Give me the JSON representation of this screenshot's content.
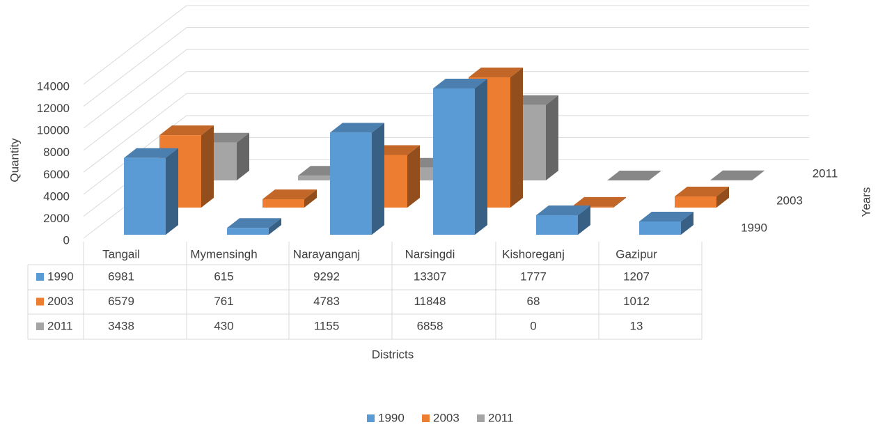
{
  "chart_data": {
    "type": "bar3d",
    "categories": [
      "Tangail",
      "Mymensingh",
      "Narayanganj",
      "Narsingdi",
      "Kishoreganj",
      "Gazipur"
    ],
    "series": [
      {
        "name": "1990",
        "color": "#5b9bd5",
        "values": [
          6981,
          615,
          9292,
          13307,
          1777,
          1207
        ]
      },
      {
        "name": "2003",
        "color": "#ed7d31",
        "values": [
          6579,
          761,
          4783,
          11848,
          68,
          1012
        ]
      },
      {
        "name": "2011",
        "color": "#a5a5a5",
        "values": [
          3438,
          430,
          1155,
          6858,
          0,
          13
        ]
      }
    ],
    "ylim": [
      0,
      14000
    ],
    "yticks": [
      0,
      2000,
      4000,
      6000,
      8000,
      10000,
      12000,
      14000
    ],
    "y_label": "Quantity",
    "x_label": "Districts",
    "z_label": "Years",
    "grid": true,
    "legend": "bottom",
    "data_table": true
  }
}
